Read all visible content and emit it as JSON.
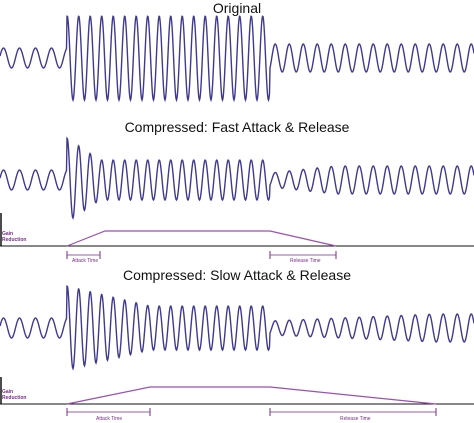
{
  "titles": {
    "original": "Original",
    "fast": "Compressed: Fast Attack & Release",
    "slow": "Compressed: Slow Attack & Release"
  },
  "gain_label_line1": "Gain",
  "gain_label_line2": "Reduction",
  "attack_label": "Attack Time",
  "release_label": "Release Time",
  "colors": {
    "wave": "#3f3a8f",
    "envelope": "#9b4fb0",
    "marker": "#7a2a8c",
    "axis": "#111111"
  }
}
